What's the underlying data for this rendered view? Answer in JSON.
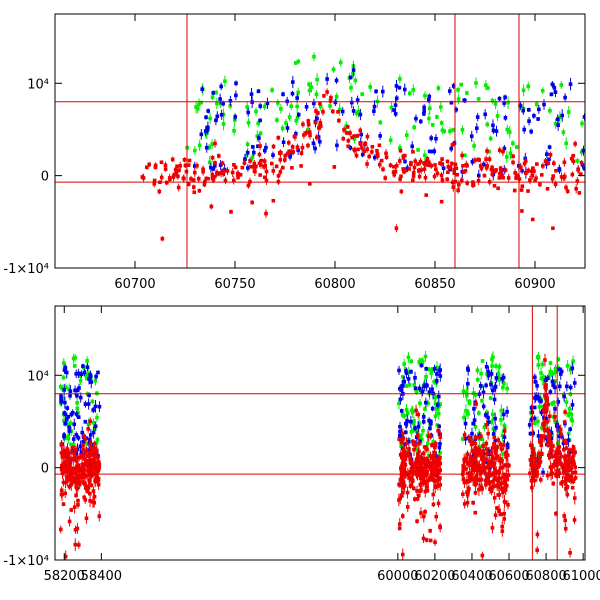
{
  "chart_data": [
    {
      "type": "scatter",
      "title": "",
      "xlabel": "",
      "ylabel": "",
      "xlim": [
        60660,
        60925
      ],
      "ylim": [
        -10000,
        17500
      ],
      "x_ticks": [
        {
          "value": 60700,
          "label": "60700"
        },
        {
          "value": 60750,
          "label": "60750"
        },
        {
          "value": 60800,
          "label": "60800"
        },
        {
          "value": 60850,
          "label": "60850"
        },
        {
          "value": 60900,
          "label": "60900"
        }
      ],
      "y_ticks": [
        {
          "value": -10000,
          "label": "-1×10⁴"
        },
        {
          "value": 0,
          "label": "0"
        },
        {
          "value": 10000,
          "label": "10⁴"
        }
      ],
      "hlines": [
        8000,
        -700
      ],
      "vlines": [
        60726,
        60860,
        60892
      ],
      "series": [
        {
          "name": "green",
          "color": "#00ee00",
          "kind": "scatter_band",
          "x_range": [
            60726,
            60925
          ],
          "base": 4500,
          "spread": 9000,
          "count": 140,
          "seed": 11
        },
        {
          "name": "blue",
          "color": "#0000ee",
          "kind": "scatter_band",
          "x_range": [
            60728,
            60925
          ],
          "base": 3500,
          "spread": 10000,
          "count": 170,
          "seed": 23
        },
        {
          "name": "red",
          "color": "#ee0000",
          "kind": "flare",
          "x_range": [
            60703,
            60925
          ],
          "peak_x": 60797,
          "peak_y": 9000,
          "width": 14,
          "baseline": 300,
          "noise": 1300,
          "count": 360,
          "seed": 37
        }
      ]
    },
    {
      "type": "scatter",
      "title": "",
      "xlabel": "",
      "ylabel": "",
      "xlim": [
        58150,
        61010
      ],
      "ylim": [
        -10000,
        17500
      ],
      "x_ticks": [
        {
          "value": 58200,
          "label": "58200"
        },
        {
          "value": 58400,
          "label": "58400"
        },
        {
          "value": 60000,
          "label": "60000"
        },
        {
          "value": 60200,
          "label": "60200"
        },
        {
          "value": 60400,
          "label": "60400"
        },
        {
          "value": 60600,
          "label": "60600"
        },
        {
          "value": 60800,
          "label": "60800"
        },
        {
          "value": 61000,
          "label": "61000"
        }
      ],
      "y_ticks": [
        {
          "value": -10000,
          "label": "-1×10⁴"
        },
        {
          "value": 0,
          "label": "0"
        },
        {
          "value": 10000,
          "label": "10⁴"
        }
      ],
      "hlines": [
        8000,
        -700
      ],
      "vlines": [
        60726,
        60860
      ],
      "segments_note": "broken x-axis: observing seasons",
      "seasons": [
        [
          58180,
          58390
        ],
        [
          60005,
          60230
        ],
        [
          60350,
          60600
        ],
        [
          60710,
          60960
        ]
      ],
      "series": [
        {
          "name": "green",
          "color": "#00ee00",
          "kind": "seasons",
          "base": 6000,
          "spread": 11000,
          "count": 240,
          "seed": 51
        },
        {
          "name": "blue",
          "color": "#0000ee",
          "kind": "seasons",
          "base": 4500,
          "spread": 12000,
          "count": 300,
          "seed": 63
        },
        {
          "name": "red",
          "color": "#ee0000",
          "kind": "seasons_flare",
          "peak_x": 60797,
          "peak_y": 9000,
          "width": 14,
          "baseline": 0,
          "noise": 2200,
          "count": 900,
          "seed": 79
        }
      ]
    }
  ]
}
